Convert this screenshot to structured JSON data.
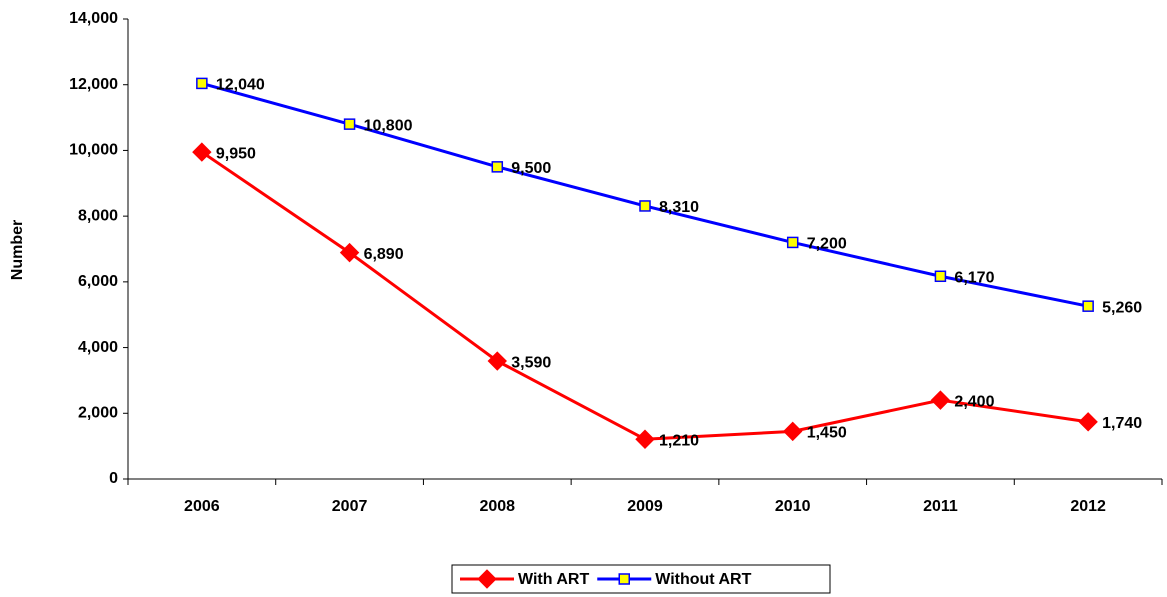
{
  "chart_data": {
    "type": "line",
    "y_label": "Number",
    "categories": [
      "2006",
      "2007",
      "2008",
      "2009",
      "2010",
      "2011",
      "2012"
    ],
    "series": [
      {
        "name": "With ART",
        "color": "#ff0000",
        "marker": "diamond",
        "values": [
          9950,
          6890,
          3590,
          1210,
          1450,
          2400,
          1740
        ],
        "value_labels": [
          "9,950",
          "6,890",
          "3,590",
          "1,210",
          "1,450",
          "2,400",
          "1,740"
        ]
      },
      {
        "name": "Without ART",
        "color": "#0000ff",
        "marker": "square",
        "marker_fill": "#ffff00",
        "values": [
          12040,
          10800,
          9500,
          8310,
          7200,
          6170,
          5260
        ],
        "value_labels": [
          "12,040",
          "10,800",
          "9,500",
          "8,310",
          "7,200",
          "6,170",
          "5,260"
        ]
      }
    ],
    "ylim": [
      0,
      14000
    ],
    "yticks": [
      0,
      {
        "value": 2000,
        "label": "2,000"
      },
      {
        "value": 4000,
        "label": "4,000"
      },
      {
        "value": 6000,
        "label": "6,000"
      },
      {
        "value": 8000,
        "label": "8,000"
      },
      {
        "value": 10000,
        "label": "10,000"
      },
      {
        "value": 12000,
        "label": "12,000"
      },
      {
        "value": 14000,
        "label": "14,000"
      }
    ],
    "legend": "bottom"
  }
}
